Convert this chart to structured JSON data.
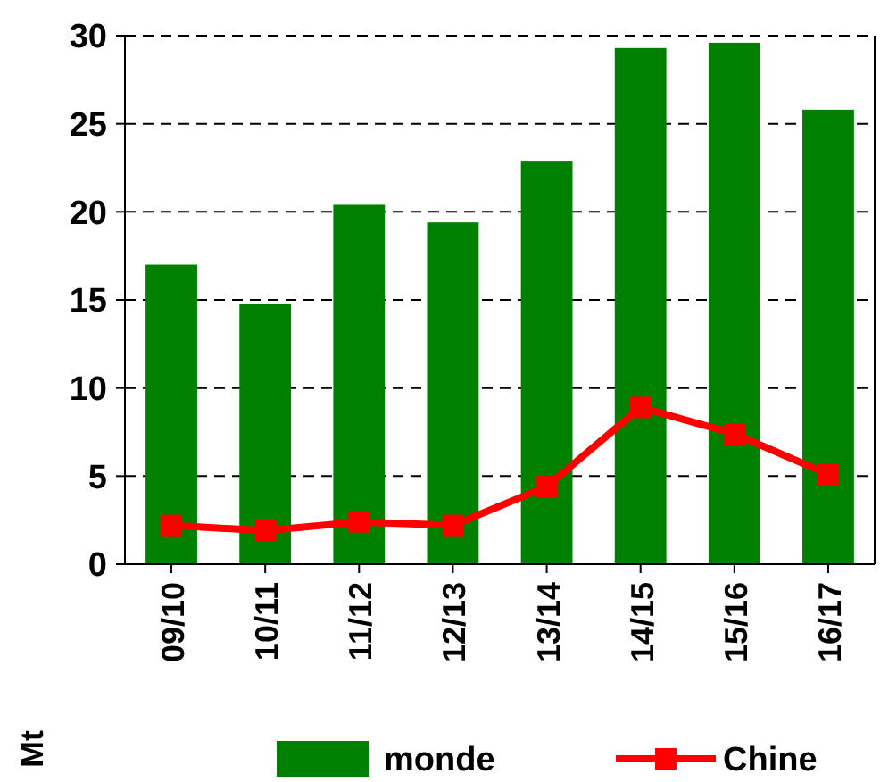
{
  "chart_data": {
    "type": "bar",
    "ylabel": "Mt",
    "categories": [
      "09/10",
      "10/11",
      "11/12",
      "12/13",
      "13/14",
      "14/15",
      "15/16",
      "16/17"
    ],
    "series": [
      {
        "name": "monde",
        "color": "#008000",
        "values": [
          17,
          14.8,
          20.4,
          19.4,
          22.9,
          29.3,
          29.6,
          25.8
        ]
      },
      {
        "name": "Chine",
        "type": "line",
        "color": "#ff0000",
        "marker": "square",
        "values": [
          2.2,
          1.9,
          2.4,
          2.2,
          4.4,
          8.9,
          7.4,
          5.1
        ]
      }
    ],
    "ylim": [
      0,
      30
    ],
    "yticks": [
      0,
      5,
      10,
      15,
      20,
      25,
      30
    ],
    "grid": "y",
    "legend": "bottom"
  }
}
